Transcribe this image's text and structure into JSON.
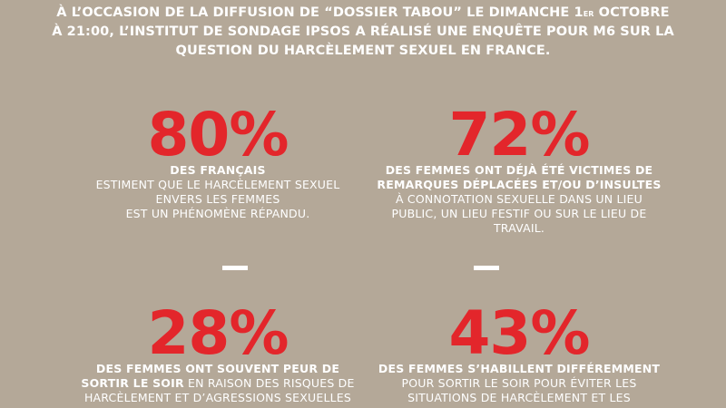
{
  "intro": {
    "line1_before": "À L’OCCASION DE LA DIFFUSION DE “DOSSIER TABOU” LE DIMANCHE 1",
    "line1_sup": "ER",
    "line1_after": " OCTOBRE",
    "line2": "À 21:00, L’INSTITUT DE SONDAGE IPSOS A RÉALISÉ UNE ENQUÊTE POUR M6 SUR LA",
    "line3": "QUESTION DU  HARCÈLEMENT SEXUEL EN FRANCE."
  },
  "stats": [
    {
      "percent": "80%",
      "lines": [
        {
          "bold": "DES FRANÇAIS",
          "normal": ""
        },
        {
          "bold": "",
          "normal": "ESTIMENT QUE LE HARCÈLEMENT SEXUEL"
        },
        {
          "bold": "",
          "normal": "ENVERS LES FEMMES"
        },
        {
          "bold": "",
          "normal": "EST UN PHÉNOMÈNE RÉPANDU."
        }
      ]
    },
    {
      "percent": "72%",
      "lines": [
        {
          "bold": "DES FEMMES ONT DÉJÀ ÉTÉ VICTIMES DE",
          "normal": ""
        },
        {
          "bold": "REMARQUES DÉPLACÉES ET/OU D’INSULTES",
          "normal": ""
        },
        {
          "bold": "",
          "normal": "À CONNOTATION SEXUELLE DANS UN LIEU"
        },
        {
          "bold": "",
          "normal": "PUBLIC, UN LIEU FESTIF OU SUR LE LIEU DE"
        },
        {
          "bold": "",
          "normal": "TRAVAIL."
        }
      ]
    },
    {
      "percent": "28%",
      "lines": [
        {
          "bold": "DES FEMMES ONT SOUVENT PEUR DE",
          "normal": ""
        },
        {
          "bold": "SORTIR LE SOIR",
          "normal": " EN RAISON DES RISQUES DE"
        },
        {
          "bold": "",
          "normal": "HARCÈLEMENT ET D’AGRESSIONS SEXUELLES"
        }
      ]
    },
    {
      "percent": "43%",
      "lines": [
        {
          "bold": "DES FEMMES S’HABILLENT DIFFÉREMMENT",
          "normal": ""
        },
        {
          "bold": "",
          "normal": "POUR SORTIR LE SOIR POUR ÉVITER LES"
        },
        {
          "bold": "",
          "normal": "SITUATIONS DE HARCÈLEMENT ET LES"
        }
      ]
    }
  ],
  "colors": {
    "background": "#b4a898",
    "accent": "#e3262b",
    "text": "#ffffff"
  }
}
